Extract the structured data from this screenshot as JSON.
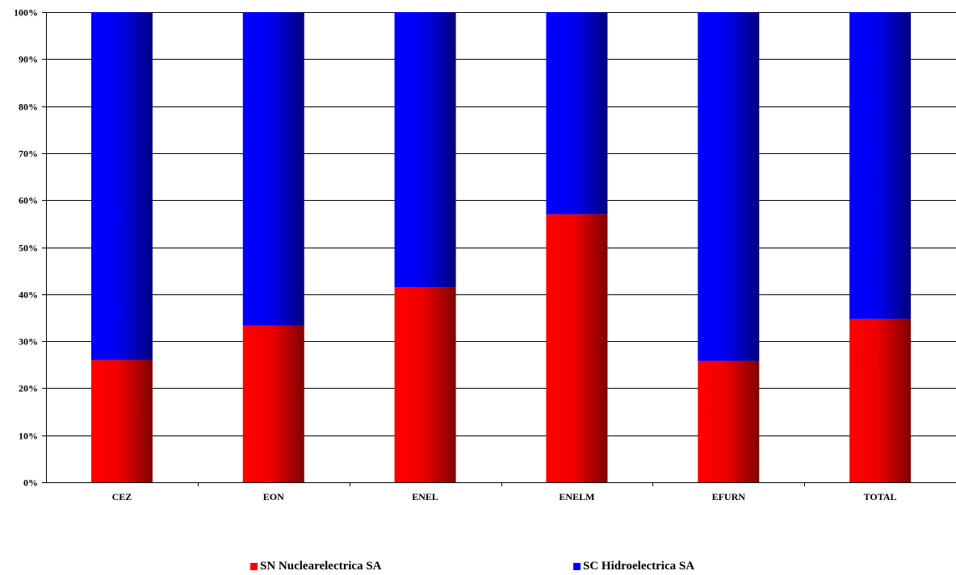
{
  "chart_data": {
    "type": "bar",
    "stacked": true,
    "percent": true,
    "categories": [
      "CEZ",
      "EON",
      "ENEL",
      "ENELM",
      "EFURN",
      "TOTAL"
    ],
    "series": [
      {
        "name": "SN Nuclearelectrica SA",
        "color": "#ff0000",
        "values": [
          26,
          33.3,
          41.5,
          57,
          25.8,
          34.7
        ]
      },
      {
        "name": "SC Hidroelectrica SA",
        "color": "#0000ff",
        "values": [
          74,
          66.7,
          58.5,
          43,
          74.2,
          65.3
        ]
      }
    ],
    "ylim": [
      0,
      100
    ],
    "yticks": [
      "0%",
      "10%",
      "20%",
      "30%",
      "40%",
      "50%",
      "60%",
      "70%",
      "80%",
      "90%",
      "100%"
    ],
    "grid": true,
    "legend_position": "bottom"
  }
}
